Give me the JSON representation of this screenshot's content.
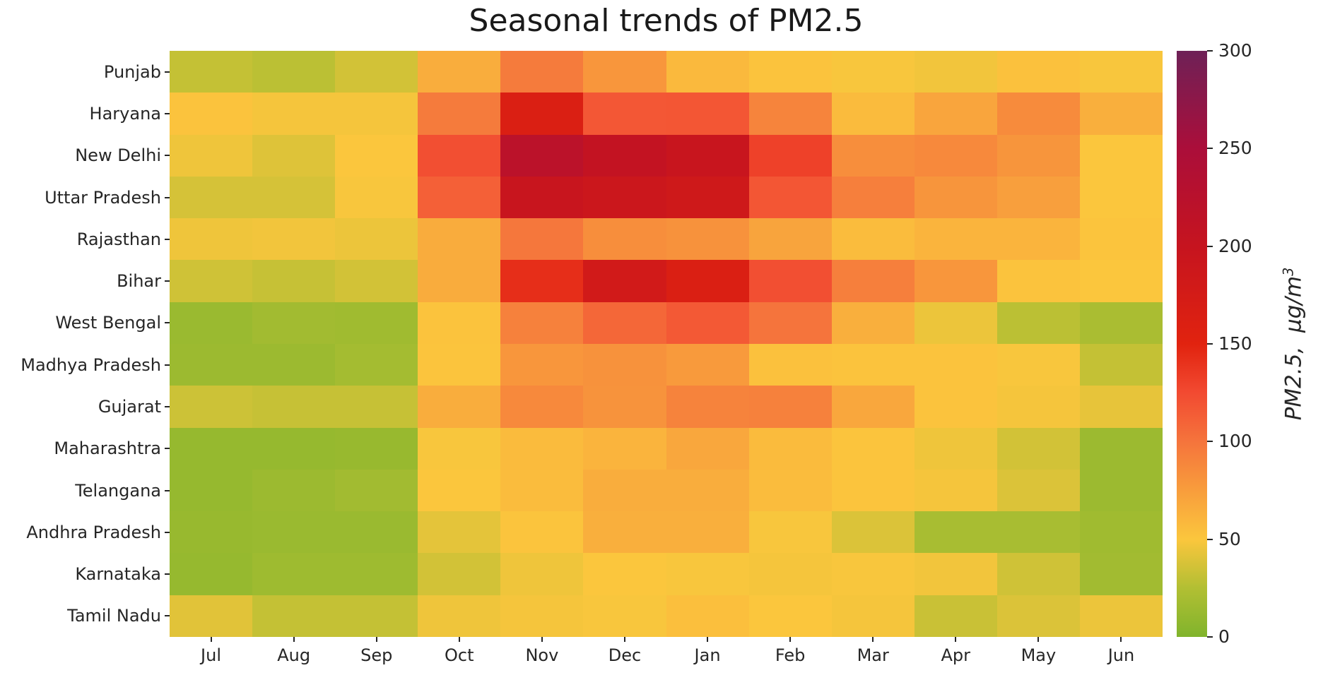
{
  "title": "Seasonal trends of PM2.5",
  "colorbar": {
    "label_main": "PM2.5,  µg/m",
    "label_sup": "3",
    "ticks": [
      0,
      50,
      100,
      150,
      200,
      250,
      300
    ],
    "min": 0,
    "max": 300
  },
  "chart_data": {
    "type": "heatmap",
    "title": "Seasonal trends of PM2.5",
    "xlabel": "",
    "ylabel": "",
    "legend_label": "PM2.5, µg/m³",
    "x": [
      "Jul",
      "Aug",
      "Sep",
      "Oct",
      "Nov",
      "Dec",
      "Jan",
      "Feb",
      "Mar",
      "Apr",
      "May",
      "Jun"
    ],
    "y": [
      "Punjab",
      "Haryana",
      "New Delhi",
      "Uttar Pradesh",
      "Rajasthan",
      "Bihar",
      "West Bengal",
      "Madhya Pradesh",
      "Gujarat",
      "Maharashtra",
      "Telangana",
      "Andhra Pradesh",
      "Karnataka",
      "Tamil Nadu"
    ],
    "values": [
      [
        31,
        28,
        36,
        65,
        96,
        79,
        58,
        52,
        49,
        47,
        53,
        49
      ],
      [
        52,
        48,
        48,
        96,
        163,
        117,
        118,
        90,
        57,
        70,
        86,
        64
      ],
      [
        46,
        40,
        50,
        122,
        220,
        205,
        196,
        131,
        84,
        87,
        80,
        50
      ],
      [
        37,
        37,
        49,
        112,
        196,
        190,
        185,
        118,
        93,
        80,
        74,
        50
      ],
      [
        46,
        47,
        45,
        66,
        98,
        84,
        82,
        71,
        56,
        61,
        61,
        51
      ],
      [
        35,
        32,
        36,
        66,
        143,
        180,
        163,
        122,
        93,
        79,
        52,
        50
      ],
      [
        13,
        17,
        16,
        52,
        92,
        108,
        116,
        100,
        64,
        45,
        28,
        21
      ],
      [
        14,
        14,
        18,
        51,
        79,
        82,
        77,
        53,
        52,
        52,
        49,
        31
      ],
      [
        34,
        32,
        32,
        65,
        87,
        81,
        91,
        92,
        69,
        52,
        48,
        43
      ],
      [
        11,
        11,
        12,
        49,
        57,
        61,
        69,
        57,
        51,
        46,
        36,
        14
      ],
      [
        11,
        14,
        17,
        50,
        56,
        65,
        65,
        56,
        51,
        48,
        39,
        14
      ],
      [
        12,
        13,
        13,
        42,
        51,
        64,
        64,
        49,
        39,
        20,
        20,
        16
      ],
      [
        11,
        15,
        15,
        36,
        46,
        50,
        49,
        48,
        49,
        47,
        35,
        17
      ],
      [
        41,
        31,
        31,
        46,
        48,
        49,
        54,
        50,
        48,
        33,
        39,
        45
      ]
    ],
    "vmin": 0,
    "vmax": 300,
    "grid": false,
    "legend_position": "right-colorbar",
    "colormap": [
      [
        0,
        "#80b42c"
      ],
      [
        25,
        "#b2bf33"
      ],
      [
        50,
        "#fbc63d"
      ],
      [
        100,
        "#f5743c"
      ],
      [
        125,
        "#f24a31"
      ],
      [
        150,
        "#e1230f"
      ],
      [
        200,
        "#c6141f"
      ],
      [
        250,
        "#ab0e3a"
      ],
      [
        300,
        "#6e2157"
      ]
    ]
  }
}
